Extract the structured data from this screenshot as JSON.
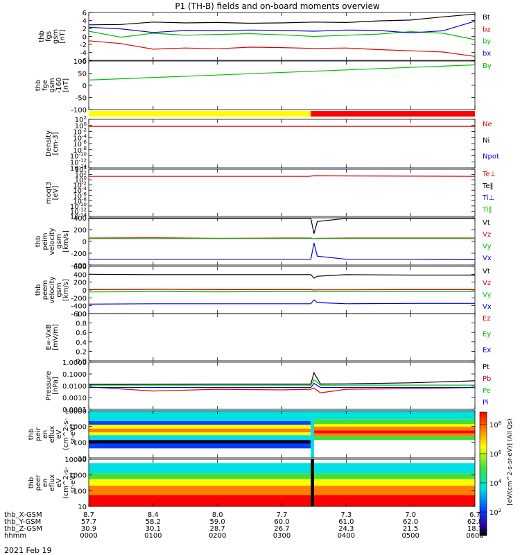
{
  "title": "P1 (TH-B) fields and on-board moments overview",
  "date_label": "2021 Feb 19",
  "colorbar_label": "[eV/(cm^2-s-sr-eV)] (All Qs)",
  "colorbar_ticks": [
    "10^8",
    "10^6",
    "10^4",
    "10^2"
  ],
  "colors": {
    "black": "#000000",
    "red": "#e00000",
    "green": "#00c000",
    "blue": "#0000e0",
    "yellow": "#ffff00",
    "barred": "#ff0000",
    "cyan": "#00e0e0"
  },
  "orbit": {
    "rows": [
      {
        "label": "thb_X-GSM",
        "values": [
          "8.7",
          "8.4",
          "8.0",
          "7.7",
          "7.3",
          "7.0",
          "6.7"
        ]
      },
      {
        "label": "thb_Y-GSM",
        "values": [
          "57.7",
          "58.2",
          "59.0",
          "60.0",
          "61.0",
          "62.0",
          "62.8"
        ]
      },
      {
        "label": "thb_Z-GSM",
        "values": [
          "30.9",
          "30.1",
          "28.7",
          "26.7",
          "24.3",
          "21.5",
          "18.7"
        ]
      },
      {
        "label": "hhmm",
        "values": [
          "0000",
          "0100",
          "0200",
          "0300",
          "0400",
          "0500",
          "0600"
        ]
      }
    ]
  },
  "chart_data": [
    {
      "type": "line",
      "id": "p1",
      "ylabel": [
        "thb",
        "fgs",
        "gsm",
        "[nT]"
      ],
      "ylim": [
        -6,
        6
      ],
      "yticks": [
        "6",
        "4",
        "2",
        "0",
        "-2",
        "-4",
        "-6"
      ],
      "x_hours": [
        0,
        0.5,
        1,
        1.5,
        2,
        2.5,
        3,
        3.5,
        4,
        4.5,
        5,
        5.5,
        6
      ],
      "series": [
        {
          "name": "Bt",
          "color": "black",
          "values": [
            2.9,
            3.0,
            3.6,
            3.4,
            3.5,
            3.3,
            3.4,
            3.6,
            3.5,
            3.9,
            4.1,
            4.9,
            5.6
          ]
        },
        {
          "name": "bz",
          "color": "red",
          "values": [
            -1.1,
            -1.8,
            -3.2,
            -2.9,
            -3.1,
            -2.7,
            -2.8,
            -3.0,
            -2.9,
            -3.3,
            -3.6,
            -3.9,
            -5.0
          ]
        },
        {
          "name": "by",
          "color": "green",
          "values": [
            1.3,
            -0.2,
            0.8,
            0.3,
            0.5,
            0.7,
            0.4,
            0.0,
            0.3,
            0.6,
            1.2,
            0.8,
            -0.8
          ]
        },
        {
          "name": "bx",
          "color": "blue",
          "values": [
            2.3,
            1.9,
            1.0,
            1.5,
            1.4,
            1.6,
            1.5,
            1.3,
            1.6,
            1.5,
            0.9,
            1.4,
            3.8
          ]
        }
      ]
    },
    {
      "type": "line",
      "id": "p2",
      "ylabel": [
        "thb",
        "fge",
        "gsm",
        "-160",
        "[nT]"
      ],
      "ylim": [
        -130,
        100
      ],
      "yticks": [
        "100",
        "50",
        "0",
        "-50",
        "-100"
      ],
      "x_hours": [
        0,
        6
      ],
      "series": [
        {
          "name": "By",
          "color": "green",
          "values": [
            10,
            82
          ]
        }
      ]
    },
    {
      "type": "bar_strip",
      "id": "mode",
      "segments": [
        {
          "from_hour": 0,
          "to_hour": 3.45,
          "color": "yellow"
        },
        {
          "from_hour": 3.45,
          "to_hour": 6,
          "color": "barred"
        }
      ]
    },
    {
      "type": "line",
      "id": "p3",
      "ylabel": [
        "Density",
        "[cm-3]"
      ],
      "yscale": "log",
      "ylim_exp": [
        -14,
        2
      ],
      "yticks": [
        "10^2",
        "10^0",
        "10^-2",
        "10^-4",
        "10^-6",
        "10^-8",
        "10^-10",
        "10^-12",
        "10^-14"
      ],
      "legend": [
        "Ne",
        "Ni",
        "Npot"
      ],
      "legend_colors": [
        "red",
        "black",
        "blue"
      ],
      "x_hours": [
        0,
        6
      ],
      "series": [
        {
          "name": "Ne",
          "color": "red",
          "values_log10": [
            -0.3,
            -0.3
          ]
        }
      ]
    },
    {
      "type": "line",
      "id": "p4",
      "ylabel": [
        "moqt3",
        "[eV]"
      ],
      "yscale": "log",
      "ylim_exp": [
        -14,
        4
      ],
      "yticks": [
        "10^4",
        "10^2",
        "10^0",
        "10^-2",
        "10^-4",
        "10^-6",
        "10^-8",
        "10^-10",
        "10^-12",
        "10^-14"
      ],
      "legend": [
        "Te⊥",
        "Te‖",
        "Ti⊥",
        "Ti‖"
      ],
      "legend_colors": [
        "red",
        "black",
        "blue",
        "green"
      ],
      "x_hours": [
        0,
        3.42,
        3.5,
        6
      ],
      "series": [
        {
          "name": "Te⊥",
          "color": "red",
          "values_log10": [
            1.3,
            1.3,
            1.5,
            1.3
          ]
        }
      ]
    },
    {
      "type": "line",
      "id": "p5",
      "ylabel": [
        "thb",
        "peim",
        "velocity",
        "gsm",
        "[km/s]"
      ],
      "ylim": [
        -500,
        400
      ],
      "yticks": [
        "400",
        "200",
        "0",
        "-200",
        "-400"
      ],
      "legend": [
        "Vt",
        "Vz",
        "Vy",
        "Vx"
      ],
      "legend_colors": [
        "black",
        "red",
        "green",
        "blue"
      ],
      "x_hours": [
        0,
        1,
        2,
        3,
        3.45,
        3.5,
        3.55,
        4,
        5,
        6
      ],
      "series": [
        {
          "name": "Vt",
          "color": "black",
          "values": [
            390,
            390,
            390,
            390,
            390,
            100,
            330,
            390,
            390,
            390
          ]
        },
        {
          "name": "Vz",
          "color": "red",
          "values": [
            15,
            20,
            10,
            15,
            15,
            0,
            10,
            15,
            15,
            15
          ]
        },
        {
          "name": "Vy",
          "color": "green",
          "values": [
            5,
            5,
            5,
            5,
            5,
            5,
            5,
            5,
            5,
            5
          ]
        },
        {
          "name": "Vx",
          "color": "blue",
          "values": [
            -390,
            -390,
            -390,
            -390,
            -390,
            -80,
            -330,
            -390,
            -390,
            -400
          ]
        }
      ]
    },
    {
      "type": "line",
      "id": "p6",
      "ylabel": [
        "thb",
        "peem",
        "velocity",
        "gsm",
        "[km/s]"
      ],
      "ylim": [
        -600,
        600
      ],
      "yticks": [
        "600",
        "400",
        "200",
        "0",
        "-200",
        "-400",
        "-600"
      ],
      "legend": [
        "Vt",
        "Vz",
        "Vy",
        "Vx"
      ],
      "legend_colors": [
        "black",
        "red",
        "green",
        "blue"
      ],
      "x_hours": [
        0,
        1,
        2,
        3,
        3.45,
        3.5,
        3.55,
        4,
        5,
        6
      ],
      "series": [
        {
          "name": "Vt",
          "color": "black",
          "values": [
            400,
            390,
            390,
            390,
            390,
            300,
            350,
            390,
            380,
            380
          ]
        },
        {
          "name": "Vz",
          "color": "red",
          "values": [
            10,
            15,
            10,
            10,
            10,
            0,
            5,
            5,
            10,
            10
          ]
        },
        {
          "name": "Vy",
          "color": "green",
          "values": [
            -50,
            -40,
            -45,
            -40,
            -40,
            -40,
            -40,
            -40,
            -40,
            -40
          ]
        },
        {
          "name": "Vx",
          "color": "blue",
          "values": [
            -360,
            -350,
            -350,
            -350,
            -350,
            -250,
            -320,
            -350,
            -340,
            -340
          ]
        }
      ]
    },
    {
      "type": "line",
      "id": "p7",
      "ylabel": [
        "E=-VxB",
        "[mV/m]"
      ],
      "ylim": [
        0,
        1
      ],
      "yticks": [
        "1.0",
        "0.8",
        "0.6",
        "0.4",
        "0.2",
        "0.0"
      ],
      "legend": [
        "Ez",
        "Ey",
        "Ex"
      ],
      "legend_colors": [
        "red",
        "green",
        "blue"
      ],
      "series": []
    },
    {
      "type": "line",
      "id": "p8",
      "ylabel": [
        "Pressure",
        "[nPa]"
      ],
      "yscale": "log",
      "ylim_exp": [
        -4,
        0
      ],
      "yticks": [
        "1.0000",
        "0.1000",
        "0.0100",
        "0.0010",
        "0.0001"
      ],
      "legend": [
        "Pt",
        "Pb",
        "Pe",
        "Pi"
      ],
      "legend_colors": [
        "black",
        "red",
        "green",
        "blue"
      ],
      "x_hours": [
        0,
        1,
        2,
        3,
        3.45,
        3.5,
        3.6,
        4,
        5,
        6
      ],
      "series": [
        {
          "name": "Pt",
          "color": "black",
          "values_log10": [
            -1.88,
            -1.87,
            -1.86,
            -1.86,
            -1.86,
            -0.9,
            -1.85,
            -1.84,
            -1.75,
            -1.58
          ]
        },
        {
          "name": "Pb",
          "color": "red",
          "values_log10": [
            -2.1,
            -2.45,
            -2.3,
            -2.35,
            -2.3,
            -2.2,
            -2.6,
            -2.3,
            -2.25,
            -2.15
          ]
        },
        {
          "name": "Pe",
          "color": "green",
          "values_log10": [
            -1.95,
            -1.95,
            -1.95,
            -1.95,
            -1.95,
            -1.5,
            -1.95,
            -1.95,
            -1.95,
            -1.95
          ]
        },
        {
          "name": "Pi",
          "color": "blue",
          "values_log10": [
            -2.15,
            -2.15,
            -2.15,
            -2.15,
            -2.15,
            -1.8,
            -2.15,
            -2.15,
            -2.15,
            -2.15
          ]
        }
      ]
    },
    {
      "type": "heatmap",
      "id": "p9",
      "ylabel": [
        "thb",
        "peir",
        "en",
        "eflux",
        "eV",
        "(cm^2-s-",
        "sr-eV)"
      ],
      "yscale": "log",
      "ylim_exp": [
        0.4,
        4.6
      ],
      "yticks": [
        "10000",
        "1000",
        "100",
        "10"
      ]
    },
    {
      "type": "heatmap",
      "id": "p10",
      "ylabel": [
        "thb",
        "peer",
        "en",
        "eflux",
        "eV",
        "(cm^2-s-",
        "sr-eV)"
      ],
      "yscale": "log",
      "ylim_exp": [
        0.7,
        4.4
      ],
      "yticks": [
        "10000",
        "1000",
        "100",
        "10"
      ]
    }
  ]
}
